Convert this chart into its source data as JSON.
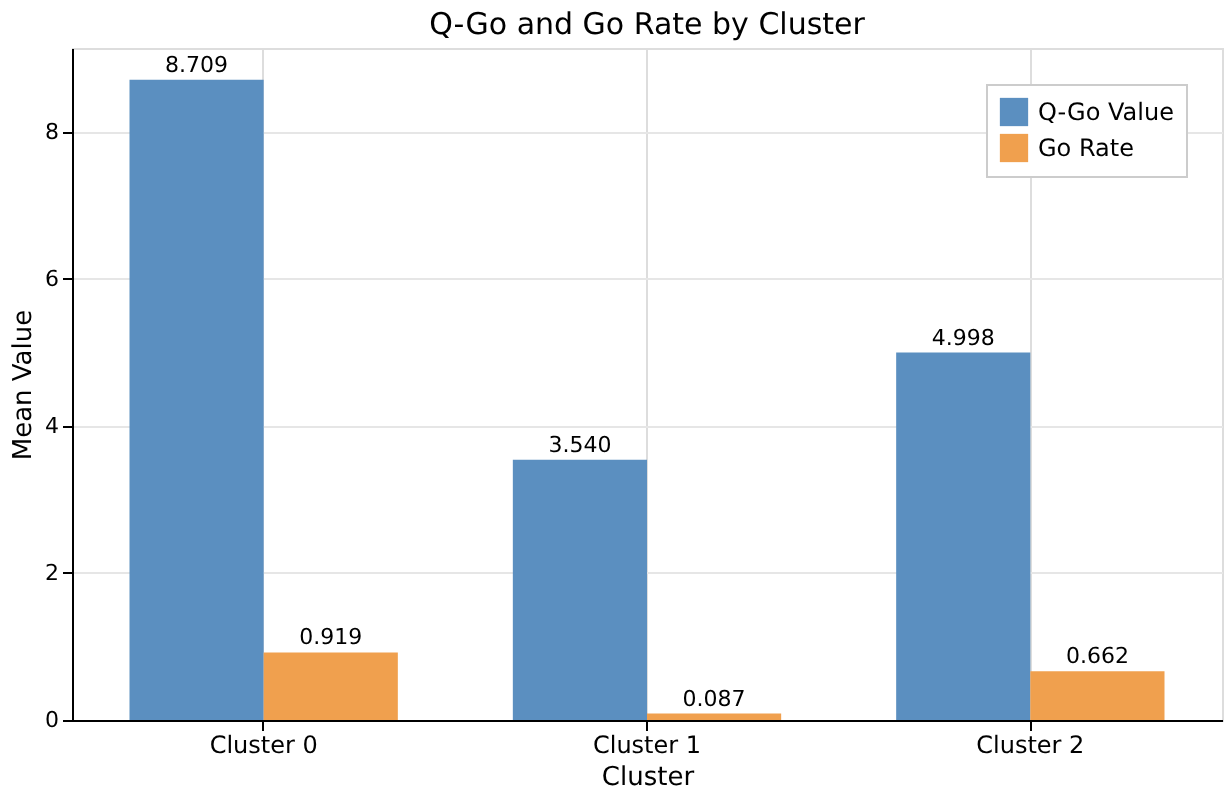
{
  "chart_data": {
    "type": "bar",
    "title": "Q-Go and Go Rate by Cluster",
    "xlabel": "Cluster",
    "ylabel": "Mean Value",
    "categories": [
      "Cluster 0",
      "Cluster 1",
      "Cluster 2"
    ],
    "series": [
      {
        "name": "Q-Go Value",
        "color": "#5b8fc0",
        "values": [
          8.709,
          3.54,
          4.998
        ],
        "value_labels": [
          "8.709",
          "3.540",
          "4.998"
        ]
      },
      {
        "name": "Go Rate",
        "color": "#f0a04e",
        "values": [
          0.919,
          0.087,
          0.662
        ],
        "value_labels": [
          "0.919",
          "0.087",
          "0.662"
        ]
      }
    ],
    "ylim": [
      0,
      9.14
    ],
    "yticks": [
      0,
      2,
      4,
      6,
      8
    ],
    "grid": true,
    "legend": "top right"
  }
}
